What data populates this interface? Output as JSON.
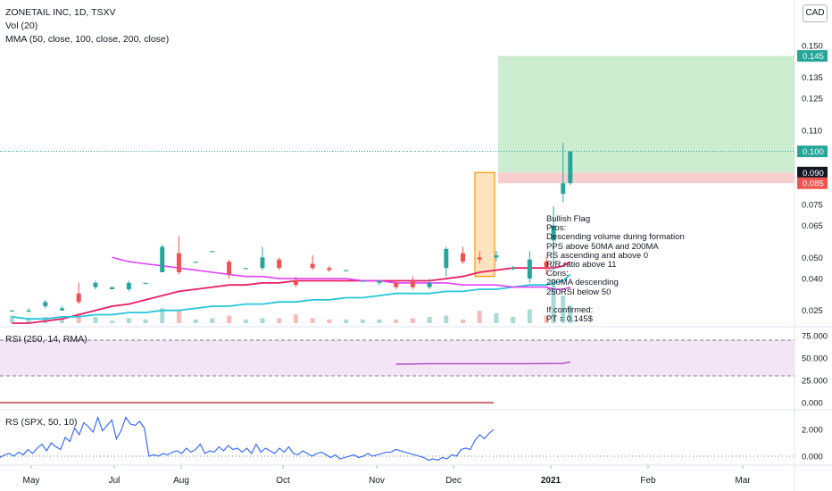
{
  "header": {
    "title": "ZONETAIL INC, 1D, TSXV",
    "vol_label": "Vol (20)",
    "mma_label": "MMA (50, close, 100, close, 200, close)"
  },
  "currency_button": "CAD",
  "rsi_label": "RSI (250, 14, RMA)",
  "rs_label": "RS (SPX, 50, 10)",
  "price_tags": [
    {
      "text": "0.145",
      "color": "#26a69a",
      "value": 0.145
    },
    {
      "text": "0.100",
      "color": "#26a69a",
      "value": 0.1
    },
    {
      "text": "0.090",
      "color": "#131722",
      "value": 0.09
    },
    {
      "text": "0.085",
      "color": "#ef5350",
      "value": 0.085
    }
  ],
  "annotation": {
    "lines": [
      "Bullish Flag",
      "Pros:",
      "Descending volume during formation",
      "PPS above 50MA and 200MA",
      "RS ascending and above 0",
      "R/R ratio above 11",
      "Cons:",
      "200MA descending",
      "250RSI below 50",
      "",
      "If confirmed:",
      "PT = 0.145$"
    ]
  },
  "colors": {
    "up": "#26a69a",
    "down": "#ef5350",
    "ma50": "#e91e63",
    "ma100": "#26c6da",
    "ma200": "#e040fb",
    "profit_zone": "#c8ebcb",
    "loss_zone": "#f8c9c9",
    "flag_highlight": "#ff9800",
    "rsi_band": "#f3e5f5",
    "rsi_line": "#ab47bc",
    "rs_line": "#2962ff"
  },
  "chart_data": [
    {
      "type": "candlestick",
      "title": "ZONETAIL INC, 1D, TSXV",
      "currency": "CAD",
      "x_labels": [
        "May",
        "Jul",
        "Aug",
        "Oct",
        "Nov",
        "Dec",
        "2021",
        "Feb",
        "Mar"
      ],
      "y_ticks": [
        0.025,
        0.04,
        0.05,
        0.065,
        0.075,
        0.09,
        0.11,
        0.125,
        0.135,
        0.15
      ],
      "ylim": [
        0.019,
        0.152
      ],
      "candles": [
        {
          "date": "2020-04-27",
          "open": 0.025,
          "high": 0.025,
          "low": 0.025,
          "close": 0.025
        },
        {
          "date": "2020-05-04",
          "open": 0.025,
          "high": 0.026,
          "low": 0.024,
          "close": 0.025
        },
        {
          "date": "2020-05-11",
          "open": 0.027,
          "high": 0.03,
          "low": 0.026,
          "close": 0.029
        },
        {
          "date": "2020-05-18",
          "open": 0.025,
          "high": 0.027,
          "low": 0.025,
          "close": 0.026
        },
        {
          "date": "2020-05-25",
          "open": 0.033,
          "high": 0.038,
          "low": 0.028,
          "close": 0.029
        },
        {
          "date": "2020-06-01",
          "open": 0.036,
          "high": 0.039,
          "low": 0.035,
          "close": 0.038
        },
        {
          "date": "2020-06-08",
          "open": 0.035,
          "high": 0.036,
          "low": 0.035,
          "close": 0.036
        },
        {
          "date": "2020-06-15",
          "open": 0.035,
          "high": 0.039,
          "low": 0.034,
          "close": 0.038
        },
        {
          "date": "2020-06-22",
          "open": 0.038,
          "high": 0.038,
          "low": 0.038,
          "close": 0.038
        },
        {
          "date": "2020-06-29",
          "open": 0.043,
          "high": 0.056,
          "low": 0.043,
          "close": 0.055
        },
        {
          "date": "2020-07-06",
          "open": 0.052,
          "high": 0.06,
          "low": 0.042,
          "close": 0.043
        },
        {
          "date": "2020-07-13",
          "open": 0.048,
          "high": 0.048,
          "low": 0.048,
          "close": 0.048
        },
        {
          "date": "2020-07-20",
          "open": 0.053,
          "high": 0.053,
          "low": 0.053,
          "close": 0.053
        },
        {
          "date": "2020-07-27",
          "open": 0.048,
          "high": 0.049,
          "low": 0.04,
          "close": 0.042
        },
        {
          "date": "2020-08-03",
          "open": 0.045,
          "high": 0.045,
          "low": 0.045,
          "close": 0.045
        },
        {
          "date": "2020-08-10",
          "open": 0.045,
          "high": 0.055,
          "low": 0.044,
          "close": 0.05
        },
        {
          "date": "2020-08-17",
          "open": 0.049,
          "high": 0.05,
          "low": 0.044,
          "close": 0.045
        },
        {
          "date": "2020-08-24",
          "open": 0.039,
          "high": 0.041,
          "low": 0.036,
          "close": 0.037
        },
        {
          "date": "2020-08-31",
          "open": 0.047,
          "high": 0.051,
          "low": 0.044,
          "close": 0.045
        },
        {
          "date": "2020-09-07",
          "open": 0.045,
          "high": 0.046,
          "low": 0.043,
          "close": 0.044
        },
        {
          "date": "2020-09-14",
          "open": 0.044,
          "high": 0.044,
          "low": 0.044,
          "close": 0.044
        },
        {
          "date": "2020-09-21",
          "open": 0.039,
          "high": 0.039,
          "low": 0.039,
          "close": 0.039
        },
        {
          "date": "2020-09-28",
          "open": 0.038,
          "high": 0.039,
          "low": 0.037,
          "close": 0.039
        },
        {
          "date": "2020-10-05",
          "open": 0.038,
          "high": 0.039,
          "low": 0.035,
          "close": 0.036
        },
        {
          "date": "2020-10-12",
          "open": 0.039,
          "high": 0.041,
          "low": 0.035,
          "close": 0.036
        },
        {
          "date": "2020-10-19",
          "open": 0.036,
          "high": 0.04,
          "low": 0.035,
          "close": 0.038
        },
        {
          "date": "2020-10-26",
          "open": 0.045,
          "high": 0.055,
          "low": 0.041,
          "close": 0.054
        },
        {
          "date": "2020-11-02",
          "open": 0.052,
          "high": 0.055,
          "low": 0.047,
          "close": 0.048
        },
        {
          "date": "2020-11-09",
          "open": 0.05,
          "high": 0.053,
          "low": 0.047,
          "close": 0.049
        },
        {
          "date": "2020-11-16",
          "open": 0.05,
          "high": 0.053,
          "low": 0.048,
          "close": 0.051
        },
        {
          "date": "2020-11-23",
          "open": 0.045,
          "high": 0.046,
          "low": 0.044,
          "close": 0.045
        },
        {
          "date": "2020-11-30",
          "open": 0.04,
          "high": 0.053,
          "low": 0.038,
          "close": 0.049
        },
        {
          "date": "2020-12-07",
          "open": 0.048,
          "high": 0.05,
          "low": 0.042,
          "close": 0.045
        },
        {
          "date": "2020-12-10",
          "open": 0.058,
          "high": 0.074,
          "low": 0.041,
          "close": 0.065
        },
        {
          "date": "2020-12-14",
          "open": 0.08,
          "high": 0.104,
          "low": 0.076,
          "close": 0.085
        },
        {
          "date": "2020-12-17",
          "open": 0.085,
          "high": 0.1,
          "low": 0.084,
          "close": 0.1
        }
      ],
      "series": [
        {
          "name": "MA50",
          "values": [
            0.019,
            0.019,
            0.02,
            0.021,
            0.023,
            0.025,
            0.027,
            0.028,
            0.03,
            0.032,
            0.034,
            0.035,
            0.036,
            0.037,
            0.037,
            0.038,
            0.038,
            0.039,
            0.039,
            0.039,
            0.039,
            0.039,
            0.039,
            0.039,
            0.039,
            0.039,
            0.04,
            0.041,
            0.043,
            0.044,
            0.045,
            0.045,
            0.045,
            0.045,
            0.046,
            0.048
          ]
        },
        {
          "name": "MA100",
          "values": [
            0.022,
            0.021,
            0.021,
            0.022,
            0.022,
            0.023,
            0.023,
            0.024,
            0.024,
            0.025,
            0.025,
            0.026,
            0.027,
            0.027,
            0.028,
            0.028,
            0.029,
            0.029,
            0.03,
            0.03,
            0.031,
            0.031,
            0.032,
            0.033,
            0.033,
            0.033,
            0.034,
            0.034,
            0.035,
            0.035,
            0.036,
            0.037,
            0.037,
            0.038,
            0.039,
            0.042
          ]
        },
        {
          "name": "MA200",
          "values": [
            null,
            null,
            null,
            null,
            null,
            null,
            0.05,
            0.048,
            0.047,
            0.046,
            0.045,
            0.044,
            0.043,
            0.042,
            0.041,
            0.041,
            0.04,
            0.04,
            0.04,
            0.04,
            0.04,
            0.039,
            0.039,
            0.038,
            0.038,
            0.038,
            0.038,
            0.037,
            0.037,
            0.037,
            0.036,
            0.036,
            0.036,
            0.035,
            0.035,
            0.036
          ]
        }
      ],
      "zones": {
        "target": 0.145,
        "entry": 0.09,
        "stop": 0.085
      }
    },
    {
      "type": "bar",
      "title": "Vol (20)",
      "values": [
        0.6,
        0.4,
        0.5,
        0.3,
        0.8,
        0.5,
        0.2,
        0.4,
        0.3,
        1.2,
        1.0,
        0.3,
        0.4,
        0.6,
        0.3,
        0.4,
        0.4,
        0.7,
        0.4,
        0.3,
        0.3,
        0.3,
        0.3,
        0.3,
        0.4,
        0.5,
        0.6,
        0.3,
        1.0,
        0.8,
        0.5,
        1.1,
        0.6,
        3.5,
        2.2,
        1.4
      ]
    },
    {
      "type": "line",
      "title": "RSI (250, 14, RMA)",
      "y_ticks": [
        0,
        25,
        50,
        75
      ],
      "ylim": [
        -5,
        80
      ],
      "x": [
        "2020-10-05",
        "2020-10-19",
        "2020-11-02",
        "2020-11-16",
        "2020-11-30",
        "2020-12-14",
        "2020-12-17"
      ],
      "values": [
        43.0,
        43.6,
        43.6,
        43.6,
        43.6,
        43.9,
        45.5
      ]
    },
    {
      "type": "line",
      "title": "RS (SPX, 50, 10)",
      "y_ticks": [
        0,
        2
      ],
      "ylim": [
        -0.6,
        3.2
      ],
      "values": [
        -0.1,
        0.1,
        0.2,
        0.0,
        0.3,
        0.1,
        0.5,
        0.2,
        0.6,
        0.9,
        0.4,
        1.0,
        0.7,
        0.5,
        1.4,
        1.1,
        2.1,
        1.6,
        2.5,
        2.2,
        1.8,
        2.9,
        1.9,
        2.3,
        2.7,
        1.3,
        1.9,
        2.9,
        2.4,
        2.3,
        2.6,
        2.1,
        0.0,
        0.1,
        0.0,
        0.2,
        0.1,
        0.3,
        0.4,
        0.2,
        0.6,
        0.3,
        0.5,
        0.9,
        0.2,
        0.4,
        0.3,
        0.7,
        0.4,
        0.8,
        0.5,
        0.6,
        0.3,
        0.6,
        0.2,
        0.9,
        0.3,
        0.6,
        0.4,
        0.2,
        0.6,
        0.3,
        0.7,
        0.2,
        0.1,
        0.4,
        0.2,
        0.0,
        0.2,
        0.3,
        0.1,
        -0.1,
        0.1,
        -0.2,
        -0.1,
        0.0,
        0.1,
        -0.1,
        0.0,
        0.2,
        0.0,
        0.1,
        0.2,
        0.3,
        0.3,
        0.5,
        0.4,
        0.3,
        0.2,
        0.1,
        0.0,
        -0.1,
        -0.3,
        -0.2,
        -0.3,
        -0.1,
        -0.2,
        0.1,
        0.0,
        0.5,
        0.6,
        0.5,
        1.2,
        1.6,
        1.3,
        1.7,
        2.0
      ]
    }
  ]
}
